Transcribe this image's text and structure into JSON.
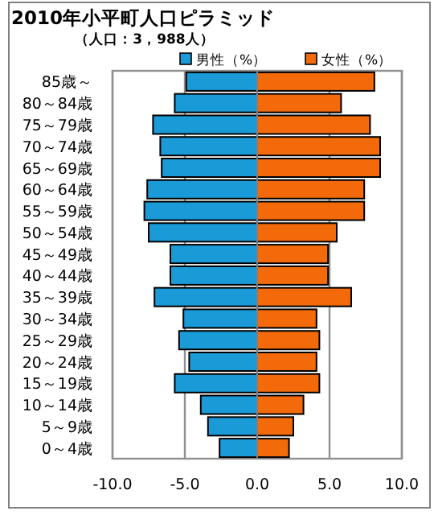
{
  "chart_data": {
    "type": "bar",
    "orientation": "horizontal",
    "stacked": true,
    "title": "2010年小平町人口ピラミッド",
    "subtitle": "（人口：3，988人）",
    "categories": [
      "85歳～",
      "80～84歳",
      "75～79歳",
      "70～74歳",
      "65～69歳",
      "60～64歳",
      "55～59歳",
      "50～54歳",
      "45～49歳",
      "40～44歳",
      "35～39歳",
      "30～34歳",
      "25～29歳",
      "20～24歳",
      "15～19歳",
      "10～14歳",
      "5～9歳",
      "0～4歳"
    ],
    "series": [
      {
        "name": "男性（%）",
        "color": "#1a9ad6",
        "values": [
          -4.9,
          -5.7,
          -7.2,
          -6.7,
          -6.6,
          -7.6,
          -7.8,
          -7.5,
          -6.0,
          -6.0,
          -7.1,
          -5.1,
          -5.4,
          -4.7,
          -5.7,
          -3.9,
          -3.4,
          -2.6
        ]
      },
      {
        "name": "女性（%）",
        "color": "#f26a0a",
        "values": [
          8.1,
          5.8,
          7.8,
          8.5,
          8.5,
          7.4,
          7.4,
          5.5,
          4.9,
          4.9,
          6.5,
          4.1,
          4.3,
          4.1,
          4.3,
          3.2,
          2.5,
          2.2
        ]
      }
    ],
    "xlim": [
      -10,
      10
    ],
    "xticks": [
      {
        "value": -10,
        "label": "-10.0"
      },
      {
        "value": -5,
        "label": "-5.0"
      },
      {
        "value": 0,
        "label": "0.0"
      },
      {
        "value": 5,
        "label": "5.0"
      },
      {
        "value": 10,
        "label": "10.0"
      }
    ],
    "grid": "x",
    "legend": "top right"
  }
}
